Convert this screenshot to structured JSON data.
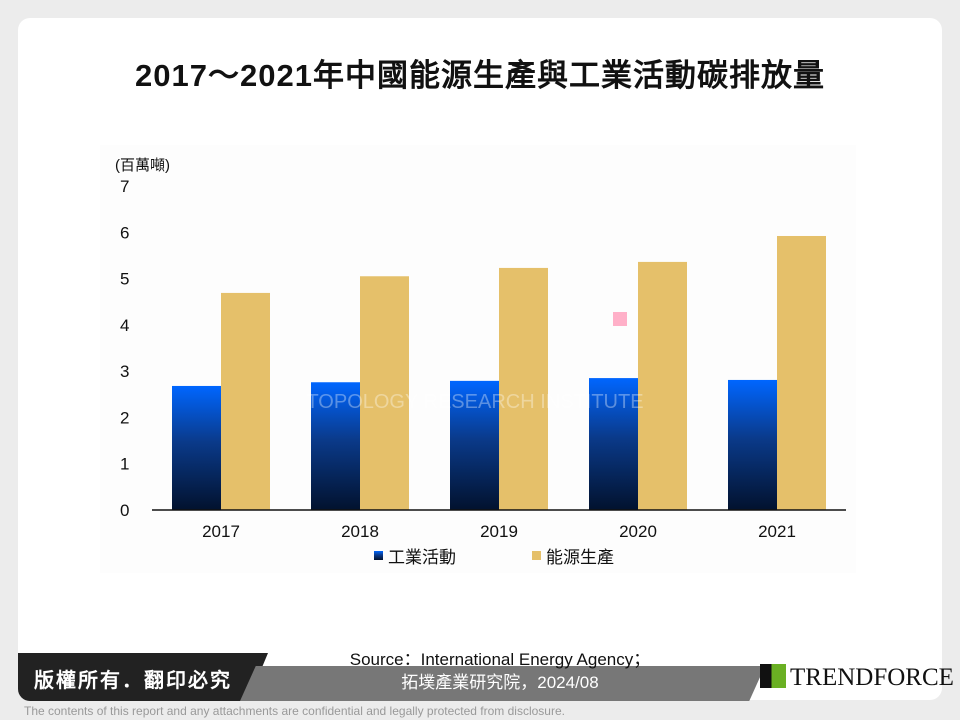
{
  "title": "2017～2021年中國能源生產與工業活動碳排放量",
  "chart_data": {
    "type": "bar",
    "title": "2017～2021年中國能源生產與工業活動碳排放量",
    "ylabel": "(百萬噸)",
    "ylim": [
      0,
      7
    ],
    "yticks": [
      0,
      1,
      2,
      3,
      4,
      5,
      6,
      7
    ],
    "categories": [
      "2017",
      "2018",
      "2019",
      "2020",
      "2021"
    ],
    "series": [
      {
        "name": "工業活動",
        "values": [
          2.68,
          2.76,
          2.79,
          2.85,
          2.81
        ],
        "color": "#0060f0"
      },
      {
        "name": "能源生產",
        "values": [
          4.69,
          5.05,
          5.23,
          5.36,
          5.92
        ],
        "color": "#e5c06a"
      }
    ],
    "legend": "bottom",
    "grid": false
  },
  "watermark": "拓墣 TOPOLOGY RESEARCH INSTITUTE",
  "source_line1": "Source：International Energy Agency；",
  "source_line2": "拓墣產業研究院，2024/08",
  "copyright": "版權所有．翻印必究",
  "logo": "TRENDFORCE",
  "disclaimer": "The contents of this report and any attachments are confidential and legally protected from disclosure."
}
